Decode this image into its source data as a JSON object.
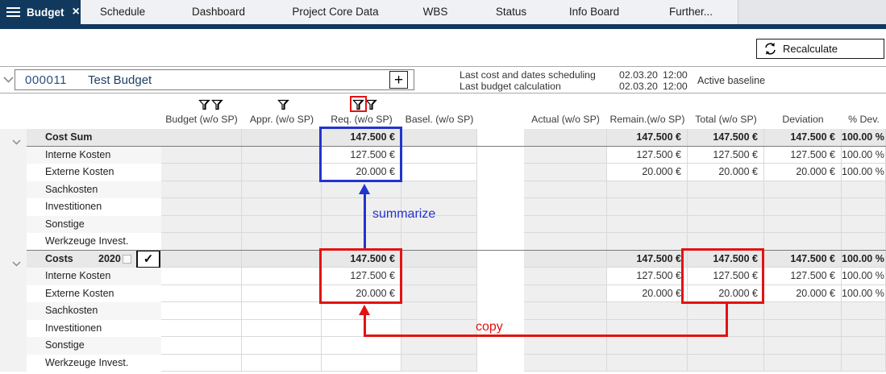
{
  "tab_bar": {
    "active_tab": {
      "label": "Budget"
    },
    "tabs": [
      {
        "label": "Schedule"
      },
      {
        "label": "Dashboard"
      },
      {
        "label": "Project Core Data"
      },
      {
        "label": "WBS"
      },
      {
        "label": "Status"
      },
      {
        "label": "Info Board"
      },
      {
        "label": "Further..."
      }
    ]
  },
  "toolbar": {
    "recalculate": "Recalculate"
  },
  "budget_header": {
    "id": "000011",
    "title": "Test Budget",
    "add_label": "+",
    "info": [
      {
        "label": "Last cost and dates scheduling",
        "date": "02.03.20",
        "time": "12:00"
      },
      {
        "label": "Last budget calculation",
        "date": "02.03.20",
        "time": "12:00"
      }
    ],
    "baseline": "Active baseline"
  },
  "table": {
    "columns": [
      {
        "key": "budget",
        "label": "Budget (w/o SP)",
        "filters": 2,
        "filter_highlighted": false
      },
      {
        "key": "appr",
        "label": "Appr. (w/o SP)",
        "filters": 1,
        "filter_highlighted": false
      },
      {
        "key": "req",
        "label": "Req. (w/o SP)",
        "filters": 2,
        "filter_highlighted": true
      },
      {
        "key": "basel",
        "label": "Basel. (w/o SP)",
        "filters": 0,
        "filter_highlighted": false
      },
      {
        "key": "actual",
        "label": "Actual (w/o SP)",
        "filters": 0,
        "filter_highlighted": false
      },
      {
        "key": "remain",
        "label": "Remain.(w/o SP)",
        "filters": 0,
        "filter_highlighted": false
      },
      {
        "key": "total",
        "label": "Total (w/o SP)",
        "filters": 0,
        "filter_highlighted": false
      },
      {
        "key": "deviation",
        "label": "Deviation",
        "filters": 0,
        "filter_highlighted": false
      },
      {
        "key": "pdev",
        "label": "% Dev.",
        "filters": 0,
        "filter_highlighted": false
      }
    ],
    "groups": [
      {
        "row": {
          "label": "Cost Sum",
          "values": {
            "req": "147.500 €",
            "remain": "147.500 €",
            "total": "147.500 €",
            "deviation": "147.500 €",
            "pdev": "100.00 %"
          }
        },
        "children": [
          {
            "label": "Interne Kosten",
            "values": {
              "req": "127.500 €",
              "remain": "127.500 €",
              "total": "127.500 €",
              "deviation": "127.500 €",
              "pdev": "100.00 %"
            }
          },
          {
            "label": "Externe Kosten",
            "values": {
              "req": "20.000 €",
              "remain": "20.000 €",
              "total": "20.000 €",
              "deviation": "20.000 €",
              "pdev": "100.00 %"
            }
          },
          {
            "label": "Sachkosten",
            "values": {}
          },
          {
            "label": "Investitionen",
            "values": {}
          },
          {
            "label": "Sonstige",
            "values": {}
          },
          {
            "label": "Werkzeuge Invest.",
            "values": {}
          }
        ]
      },
      {
        "row": {
          "label": "Costs",
          "year": "2020",
          "year_checkbox_checked": false,
          "confirm_check": "✓",
          "values": {
            "req": "147.500 €",
            "remain": "147.500 €",
            "total": "147.500 €",
            "deviation": "147.500 €",
            "pdev": "100.00 %"
          }
        },
        "children": [
          {
            "label": "Interne Kosten",
            "values": {
              "req": "127.500 €",
              "remain": "127.500 €",
              "total": "127.500 €",
              "deviation": "127.500 €",
              "pdev": "100.00 %"
            }
          },
          {
            "label": "Externe Kosten",
            "values": {
              "req": "20.000 €",
              "remain": "20.000 €",
              "total": "20.000 €",
              "deviation": "20.000 €",
              "pdev": "100.00 %"
            }
          },
          {
            "label": "Sachkosten",
            "values": {}
          },
          {
            "label": "Investitionen",
            "values": {}
          },
          {
            "label": "Sonstige",
            "values": {}
          },
          {
            "label": "Werkzeuge Invest.",
            "values": {}
          }
        ]
      }
    ]
  },
  "annotations": {
    "summarize_label": "summarize",
    "copy_label": "copy"
  },
  "colors": {
    "accent_navy": "#11395d",
    "annotation_blue": "#2334cc",
    "annotation_red": "#e31212",
    "group_row_bg": "#e8e8e8",
    "locked_cell_bg": "#efefef"
  }
}
